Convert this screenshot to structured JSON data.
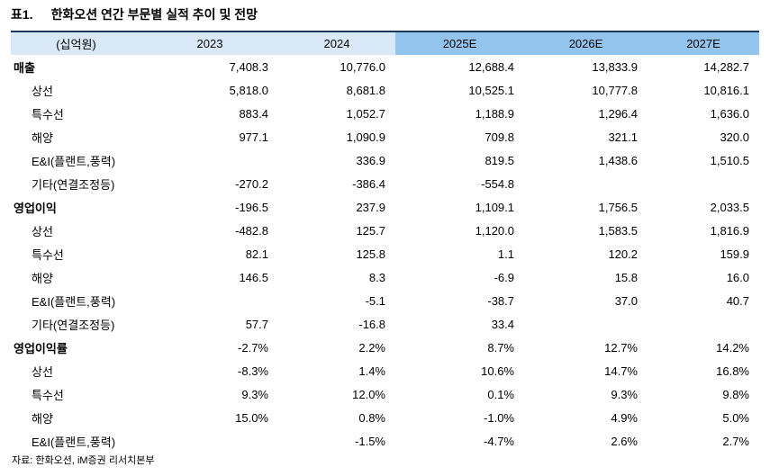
{
  "title": {
    "tag": "표1.",
    "text": "한화오션 연간 부문별 실적 추이 및 전망"
  },
  "table": {
    "unit_label": "(십억원)",
    "year_headers": [
      "2023",
      "2024",
      "2025E",
      "2026E",
      "2027E"
    ],
    "rows": [
      {
        "label": "매출",
        "bold": true,
        "indent": false,
        "values": [
          "7,408.3",
          "10,776.0",
          "12,688.4",
          "13,833.9",
          "14,282.7"
        ]
      },
      {
        "label": "상선",
        "bold": false,
        "indent": true,
        "values": [
          "5,818.0",
          "8,681.8",
          "10,525.1",
          "10,777.8",
          "10,816.1"
        ]
      },
      {
        "label": "특수선",
        "bold": false,
        "indent": true,
        "values": [
          "883.4",
          "1,052.7",
          "1,188.9",
          "1,296.4",
          "1,636.0"
        ]
      },
      {
        "label": "해양",
        "bold": false,
        "indent": true,
        "values": [
          "977.1",
          "1,090.9",
          "709.8",
          "321.1",
          "320.0"
        ]
      },
      {
        "label": "E&I(플랜트,풍력)",
        "bold": false,
        "indent": true,
        "values": [
          "",
          "336.9",
          "819.5",
          "1,438.6",
          "1,510.5"
        ]
      },
      {
        "label": "기타(연결조정등)",
        "bold": false,
        "indent": true,
        "values": [
          "-270.2",
          "-386.4",
          "-554.8",
          "",
          ""
        ]
      },
      {
        "label": "영업이익",
        "bold": true,
        "indent": false,
        "values": [
          "-196.5",
          "237.9",
          "1,109.1",
          "1,756.5",
          "2,033.5"
        ]
      },
      {
        "label": "상선",
        "bold": false,
        "indent": true,
        "values": [
          "-482.8",
          "125.7",
          "1,120.0",
          "1,583.5",
          "1,816.9"
        ]
      },
      {
        "label": "특수선",
        "bold": false,
        "indent": true,
        "values": [
          "82.1",
          "125.8",
          "1.1",
          "120.2",
          "159.9"
        ]
      },
      {
        "label": "해양",
        "bold": false,
        "indent": true,
        "values": [
          "146.5",
          "8.3",
          "-6.9",
          "15.8",
          "16.0"
        ]
      },
      {
        "label": "E&I(플랜트,풍력)",
        "bold": false,
        "indent": true,
        "values": [
          "",
          "-5.1",
          "-38.7",
          "37.0",
          "40.7"
        ]
      },
      {
        "label": "기타(연결조정등)",
        "bold": false,
        "indent": true,
        "values": [
          "57.7",
          "-16.8",
          "33.4",
          "",
          ""
        ]
      },
      {
        "label": "영업이익률",
        "bold": true,
        "indent": false,
        "values": [
          "-2.7%",
          "2.2%",
          "8.7%",
          "12.7%",
          "14.2%"
        ]
      },
      {
        "label": "상선",
        "bold": false,
        "indent": true,
        "values": [
          "-8.3%",
          "1.4%",
          "10.6%",
          "14.7%",
          "16.8%"
        ]
      },
      {
        "label": "특수선",
        "bold": false,
        "indent": true,
        "values": [
          "9.3%",
          "12.0%",
          "0.1%",
          "9.3%",
          "9.8%"
        ]
      },
      {
        "label": "해양",
        "bold": false,
        "indent": true,
        "values": [
          "15.0%",
          "0.8%",
          "-1.0%",
          "4.9%",
          "5.0%"
        ]
      },
      {
        "label": "E&I(플랜트,풍력)",
        "bold": false,
        "indent": true,
        "values": [
          "",
          "-1.5%",
          "-4.7%",
          "2.6%",
          "2.7%"
        ]
      }
    ]
  },
  "source": "자료: 한화오션, iM증권 리서치본부",
  "colors": {
    "header_light": "#D9E9F8",
    "header_accent": "#92C4EE",
    "top_border": "#17375D"
  }
}
